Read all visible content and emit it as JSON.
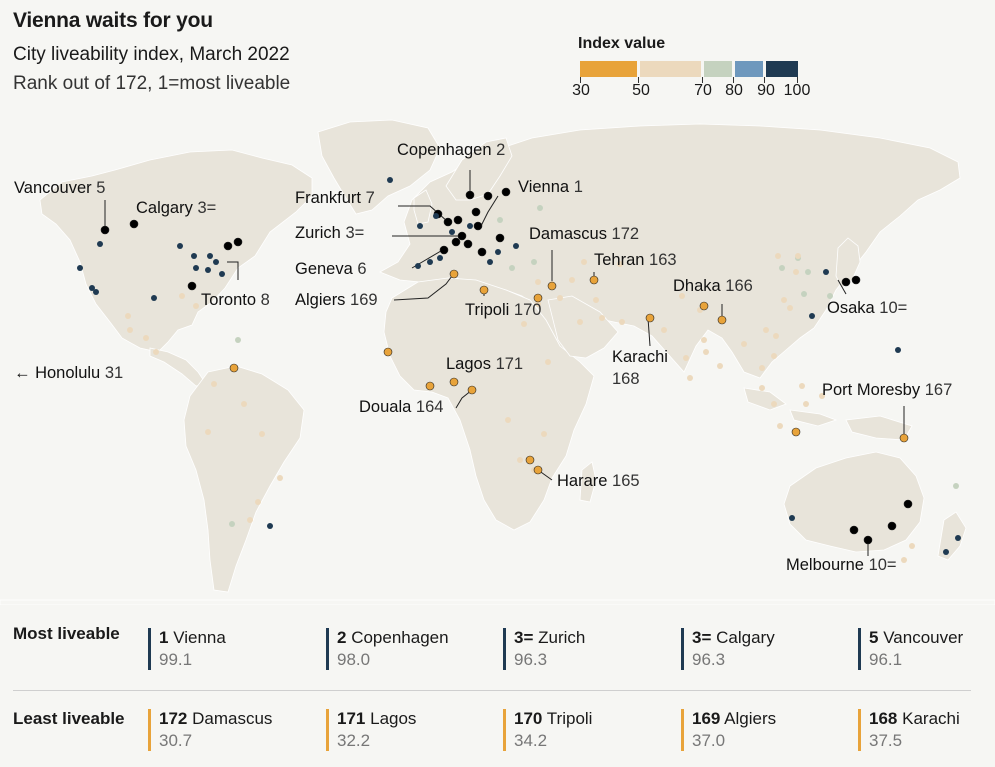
{
  "header": {
    "title": "Vienna waits for you",
    "subtitle": "City liveability index, March 2022",
    "subsubtitle": "Rank out of 172, 1=most liveable"
  },
  "legend": {
    "title": "Index value",
    "bins": [
      {
        "from": 30,
        "to": 50,
        "color": "#e8a33a"
      },
      {
        "from": 50,
        "to": 70,
        "color": "#ecd9bd"
      },
      {
        "from": 70,
        "to": 80,
        "color": "#c5d2bf"
      },
      {
        "from": 80,
        "to": 90,
        "color": "#6e98bd"
      },
      {
        "from": 90,
        "to": 100,
        "color": "#1f3a52"
      }
    ],
    "tick_labels": [
      "30",
      "50",
      "70",
      "80",
      "90",
      "100"
    ]
  },
  "map": {
    "land_color": "#e8e4da",
    "ocean_color": "#f6f6f3",
    "labels": {
      "vancouver": {
        "name": "Vancouver",
        "rank": "5"
      },
      "calgary": {
        "name": "Calgary",
        "rank": "3="
      },
      "toronto": {
        "name": "Toronto",
        "rank": "8"
      },
      "honolulu": {
        "name": "← Honolulu",
        "rank": "31"
      },
      "copenhagen": {
        "name": "Copenhagen",
        "rank": "2"
      },
      "vienna": {
        "name": "Vienna",
        "rank": "1"
      },
      "frankfurt": {
        "name": "Frankfurt",
        "rank": "7"
      },
      "zurich": {
        "name": "Zurich",
        "rank": "3="
      },
      "geneva": {
        "name": "Geneva",
        "rank": "6"
      },
      "algiers": {
        "name": "Algiers",
        "rank": "169"
      },
      "tripoli": {
        "name": "Tripoli",
        "rank": "170"
      },
      "damascus": {
        "name": "Damascus",
        "rank": "172"
      },
      "tehran": {
        "name": "Tehran",
        "rank": "163"
      },
      "dhaka": {
        "name": "Dhaka",
        "rank": "166"
      },
      "karachi": {
        "name": "Karachi",
        "rank": "168"
      },
      "lagos": {
        "name": "Lagos",
        "rank": "171"
      },
      "douala": {
        "name": "Douala",
        "rank": "164"
      },
      "harare": {
        "name": "Harare",
        "rank": "165"
      },
      "osaka": {
        "name": "Osaka",
        "rank": "10="
      },
      "port_moresby": {
        "name": "Port Moresby",
        "rank": "167"
      },
      "melbourne": {
        "name": "Melbourne",
        "rank": "10="
      }
    }
  },
  "most_liveable": {
    "heading": "Most liveable",
    "items": [
      {
        "rank": "1",
        "city": "Vienna",
        "value": "99.1"
      },
      {
        "rank": "2",
        "city": "Copenhagen",
        "value": "98.0"
      },
      {
        "rank": "3=",
        "city": "Zurich",
        "value": "96.3"
      },
      {
        "rank": "3=",
        "city": "Calgary",
        "value": "96.3"
      },
      {
        "rank": "5",
        "city": "Vancouver",
        "value": "96.1"
      }
    ]
  },
  "least_liveable": {
    "heading": "Least liveable",
    "items": [
      {
        "rank": "172",
        "city": "Damascus",
        "value": "30.7"
      },
      {
        "rank": "171",
        "city": "Lagos",
        "value": "32.2"
      },
      {
        "rank": "170",
        "city": "Tripoli",
        "value": "34.2"
      },
      {
        "rank": "169",
        "city": "Algiers",
        "value": "37.0"
      },
      {
        "rank": "168",
        "city": "Karachi",
        "value": "37.5"
      }
    ]
  }
}
